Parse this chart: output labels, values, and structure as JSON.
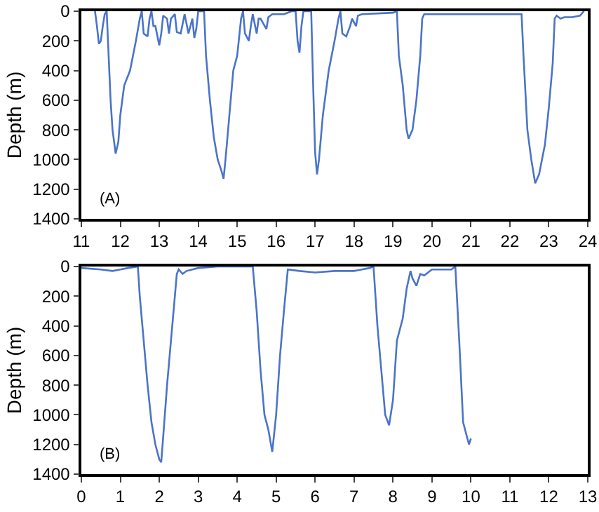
{
  "chart_data": [
    {
      "type": "line",
      "ylabel": "Depth (m)",
      "annotations": [
        "(A)"
      ],
      "xlim": [
        11,
        24
      ],
      "xticks": [
        11,
        12,
        13,
        14,
        15,
        16,
        17,
        18,
        19,
        20,
        21,
        22,
        23,
        24
      ],
      "ylim": [
        1400,
        0
      ],
      "yticks": [
        0,
        200,
        400,
        600,
        800,
        1000,
        1200,
        1400
      ],
      "grid": false,
      "marker": "none",
      "line_style": "solid",
      "series": [
        {
          "color": "#4a74c9",
          "x": [
            11.35,
            11.4,
            11.45,
            11.5,
            11.55,
            11.6,
            11.65,
            11.7,
            11.75,
            11.8,
            11.85,
            11.88,
            11.95,
            12.0,
            12.1,
            12.25,
            12.4,
            12.5,
            12.55,
            12.6,
            12.7,
            12.75,
            12.8,
            12.85,
            12.9,
            13.0,
            13.05,
            13.1,
            13.2,
            13.25,
            13.3,
            13.4,
            13.45,
            13.55,
            13.65,
            13.75,
            13.85,
            13.9,
            13.95,
            14.0,
            14.15,
            14.2,
            14.3,
            14.4,
            14.5,
            14.6,
            14.65,
            14.7,
            14.8,
            14.9,
            15.0,
            15.1,
            15.15,
            15.2,
            15.3,
            15.35,
            15.4,
            15.5,
            15.55,
            15.6,
            15.75,
            15.8,
            15.9,
            16.2,
            16.4,
            16.5,
            16.55,
            16.6,
            16.65,
            16.7,
            16.9,
            16.95,
            17.0,
            17.05,
            17.1,
            17.2,
            17.35,
            17.5,
            17.6,
            17.65,
            17.7,
            17.8,
            17.9,
            17.95,
            18.05,
            18.1,
            18.2,
            19.0,
            19.1,
            19.15,
            19.25,
            19.35,
            19.4,
            19.5,
            19.6,
            19.7,
            19.75,
            19.8,
            22.3,
            22.35,
            22.45,
            22.55,
            22.65,
            22.75,
            22.9,
            23.0,
            23.1,
            23.15,
            23.2,
            23.3,
            23.4,
            23.6,
            23.8,
            23.9
          ],
          "values": [
            0,
            100,
            220,
            200,
            100,
            20,
            0,
            300,
            600,
            800,
            900,
            960,
            880,
            700,
            500,
            400,
            200,
            50,
            0,
            150,
            170,
            50,
            0,
            100,
            100,
            230,
            150,
            30,
            50,
            150,
            50,
            20,
            140,
            150,
            20,
            150,
            50,
            180,
            120,
            0,
            0,
            300,
            600,
            850,
            1000,
            1080,
            1130,
            1000,
            700,
            400,
            300,
            50,
            0,
            150,
            200,
            100,
            20,
            150,
            50,
            50,
            120,
            40,
            20,
            20,
            0,
            0,
            200,
            280,
            100,
            0,
            0,
            500,
            950,
            1100,
            1000,
            700,
            400,
            200,
            50,
            0,
            150,
            170,
            100,
            50,
            100,
            30,
            20,
            10,
            0,
            300,
            500,
            800,
            860,
            800,
            600,
            300,
            50,
            20,
            20,
            300,
            800,
            1000,
            1160,
            1100,
            900,
            650,
            350,
            50,
            30,
            50,
            40,
            40,
            30,
            0
          ]
        }
      ]
    },
    {
      "type": "line",
      "ylabel": "Depth (m)",
      "annotations": [
        "(B)"
      ],
      "xlim": [
        0,
        13
      ],
      "xticks": [
        0,
        1,
        2,
        3,
        4,
        5,
        6,
        7,
        8,
        9,
        10,
        11,
        12,
        13
      ],
      "ylim": [
        1400,
        0
      ],
      "yticks": [
        0,
        200,
        400,
        600,
        800,
        1000,
        1200,
        1400
      ],
      "grid": false,
      "marker": "none",
      "line_style": "solid",
      "series": [
        {
          "color": "#4a74c9",
          "x": [
            0,
            0.5,
            0.8,
            1.0,
            1.2,
            1.45,
            1.5,
            1.6,
            1.7,
            1.8,
            1.9,
            2.0,
            2.05,
            2.1,
            2.2,
            2.3,
            2.4,
            2.45,
            2.5,
            2.6,
            2.7,
            3.0,
            3.5,
            4.4,
            4.5,
            4.6,
            4.7,
            4.8,
            4.9,
            5.0,
            5.1,
            5.2,
            5.3,
            5.6,
            6.0,
            6.5,
            7.0,
            7.4,
            7.5,
            7.6,
            7.7,
            7.8,
            7.9,
            8.0,
            8.1,
            8.25,
            8.35,
            8.45,
            8.5,
            8.6,
            8.7,
            8.8,
            9.0,
            9.5,
            9.6,
            9.7,
            9.8,
            9.9,
            9.95,
            10.0
          ],
          "values": [
            10,
            20,
            30,
            20,
            10,
            0,
            200,
            500,
            800,
            1050,
            1200,
            1300,
            1320,
            1150,
            800,
            500,
            200,
            50,
            20,
            50,
            30,
            10,
            0,
            0,
            300,
            700,
            1000,
            1100,
            1250,
            1000,
            600,
            300,
            20,
            30,
            40,
            30,
            30,
            10,
            0,
            400,
            700,
            1000,
            1070,
            900,
            500,
            350,
            150,
            30,
            80,
            130,
            50,
            60,
            20,
            20,
            0,
            500,
            1050,
            1150,
            1200,
            1160
          ]
        }
      ]
    }
  ]
}
